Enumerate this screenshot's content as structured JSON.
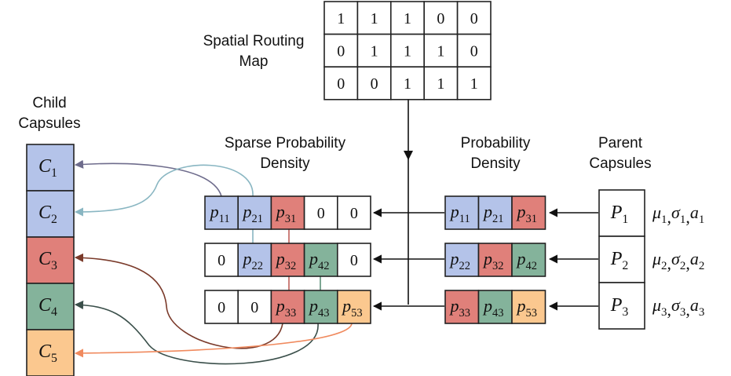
{
  "colors": {
    "blue": "#b4c3e9",
    "red": "#e0807a",
    "green": "#84b39b",
    "orange": "#fbc88f",
    "white": "#ffffff",
    "arrow_dark": "#111111",
    "curve_blue_dark": "#6e6c8c",
    "curve_blue_light": "#89b6c2",
    "curve_red": "#7a3a2a",
    "curve_green": "#3a4f4a",
    "curve_orange": "#f08a5e"
  },
  "labels": {
    "routing_map_line1": "Spatial Routing",
    "routing_map_line2": "Map",
    "child_line1": "Child",
    "child_line2": "Capsules",
    "sparse_line1": "Sparse Probability",
    "sparse_line2": "Density",
    "density_line1": "Probability",
    "density_line2": "Density",
    "parent_line1": "Parent",
    "parent_line2": "Capsules"
  },
  "routing_map": [
    [
      "1",
      "1",
      "1",
      "0",
      "0"
    ],
    [
      "0",
      "1",
      "1",
      "1",
      "0"
    ],
    [
      "0",
      "0",
      "1",
      "1",
      "1"
    ]
  ],
  "child_capsules": [
    {
      "base": "C",
      "sub": "1",
      "color": "blue"
    },
    {
      "base": "C",
      "sub": "2",
      "color": "blue"
    },
    {
      "base": "C",
      "sub": "3",
      "color": "red"
    },
    {
      "base": "C",
      "sub": "4",
      "color": "green"
    },
    {
      "base": "C",
      "sub": "5",
      "color": "orange"
    }
  ],
  "sparse_density": [
    [
      {
        "base": "p",
        "sub": "11",
        "color": "blue"
      },
      {
        "base": "p",
        "sub": "21",
        "color": "blue"
      },
      {
        "base": "p",
        "sub": "31",
        "color": "red"
      },
      {
        "text": "0",
        "color": "white"
      },
      {
        "text": "0",
        "color": "white"
      }
    ],
    [
      {
        "text": "0",
        "color": "white"
      },
      {
        "base": "p",
        "sub": "22",
        "color": "blue"
      },
      {
        "base": "p",
        "sub": "32",
        "color": "red"
      },
      {
        "base": "p",
        "sub": "42",
        "color": "green"
      },
      {
        "text": "0",
        "color": "white"
      }
    ],
    [
      {
        "text": "0",
        "color": "white"
      },
      {
        "text": "0",
        "color": "white"
      },
      {
        "base": "p",
        "sub": "33",
        "color": "red"
      },
      {
        "base": "p",
        "sub": "43",
        "color": "green"
      },
      {
        "base": "p",
        "sub": "53",
        "color": "orange"
      }
    ]
  ],
  "probability_density": [
    [
      {
        "base": "p",
        "sub": "11",
        "color": "blue"
      },
      {
        "base": "p",
        "sub": "21",
        "color": "blue"
      },
      {
        "base": "p",
        "sub": "31",
        "color": "red"
      }
    ],
    [
      {
        "base": "p",
        "sub": "22",
        "color": "blue"
      },
      {
        "base": "p",
        "sub": "32",
        "color": "red"
      },
      {
        "base": "p",
        "sub": "42",
        "color": "green"
      }
    ],
    [
      {
        "base": "p",
        "sub": "33",
        "color": "red"
      },
      {
        "base": "p",
        "sub": "43",
        "color": "green"
      },
      {
        "base": "p",
        "sub": "53",
        "color": "orange"
      }
    ]
  ],
  "parent_capsules": [
    {
      "base": "P",
      "sub": "1",
      "params": [
        {
          "b": "μ",
          "s": "1"
        },
        {
          "b": "σ",
          "s": "1"
        },
        {
          "b": "a",
          "s": "1"
        }
      ]
    },
    {
      "base": "P",
      "sub": "2",
      "params": [
        {
          "b": "μ",
          "s": "2"
        },
        {
          "b": "σ",
          "s": "2"
        },
        {
          "b": "a",
          "s": "2"
        }
      ]
    },
    {
      "base": "P",
      "sub": "3",
      "params": [
        {
          "b": "μ",
          "s": "3"
        },
        {
          "b": "σ",
          "s": "3"
        },
        {
          "b": "a",
          "s": "3"
        }
      ]
    }
  ]
}
